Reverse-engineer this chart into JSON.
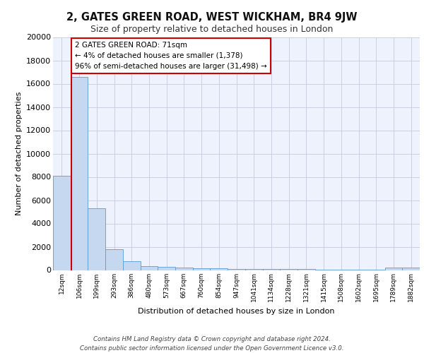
{
  "title1": "2, GATES GREEN ROAD, WEST WICKHAM, BR4 9JW",
  "title2": "Size of property relative to detached houses in London",
  "xlabel": "Distribution of detached houses by size in London",
  "ylabel": "Number of detached properties",
  "categories": [
    "12sqm",
    "106sqm",
    "199sqm",
    "293sqm",
    "386sqm",
    "480sqm",
    "573sqm",
    "667sqm",
    "760sqm",
    "854sqm",
    "947sqm",
    "1041sqm",
    "1134sqm",
    "1228sqm",
    "1321sqm",
    "1415sqm",
    "1508sqm",
    "1602sqm",
    "1695sqm",
    "1789sqm",
    "1882sqm"
  ],
  "values": [
    8100,
    16600,
    5300,
    1800,
    750,
    350,
    280,
    220,
    180,
    150,
    120,
    100,
    90,
    75,
    65,
    55,
    45,
    40,
    35,
    200,
    200
  ],
  "bar_color": "#c5d8f0",
  "bar_edge_color": "#5b9bd5",
  "annotation_text_line1": "2 GATES GREEN ROAD: 71sqm",
  "annotation_text_line2": "← 4% of detached houses are smaller (1,378)",
  "annotation_text_line3": "96% of semi-detached houses are larger (31,498) →",
  "annotation_box_facecolor": "#ffffff",
  "annotation_border_color": "#cc0000",
  "red_line_color": "#cc0000",
  "footer_line1": "Contains HM Land Registry data © Crown copyright and database right 2024.",
  "footer_line2": "Contains public sector information licensed under the Open Government Licence v3.0.",
  "background_color": "#eef2fc",
  "ylim": [
    0,
    20000
  ],
  "yticks": [
    0,
    2000,
    4000,
    6000,
    8000,
    10000,
    12000,
    14000,
    16000,
    18000,
    20000
  ],
  "grid_color": "#c8cfe8",
  "title1_fontsize": 10.5,
  "title2_fontsize": 9,
  "ylabel_fontsize": 8,
  "xlabel_fontsize": 8,
  "tick_fontsize": 6.5,
  "footer_fontsize": 6.2
}
